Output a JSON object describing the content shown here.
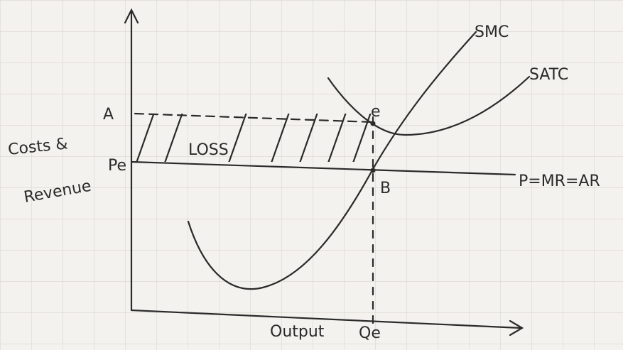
{
  "curves": {
    "smc": "SMC",
    "satc": "SATC"
  },
  "points": {
    "a": "A",
    "e": "e",
    "pe": "Pe",
    "b": "B"
  },
  "axes": {
    "y_label_1": "Costs &",
    "y_label_2": "Revenue",
    "x_label": "Output",
    "x_point": "Qe"
  },
  "regions": {
    "loss": "LOSS"
  },
  "lines": {
    "price": "P=MR=AR"
  }
}
